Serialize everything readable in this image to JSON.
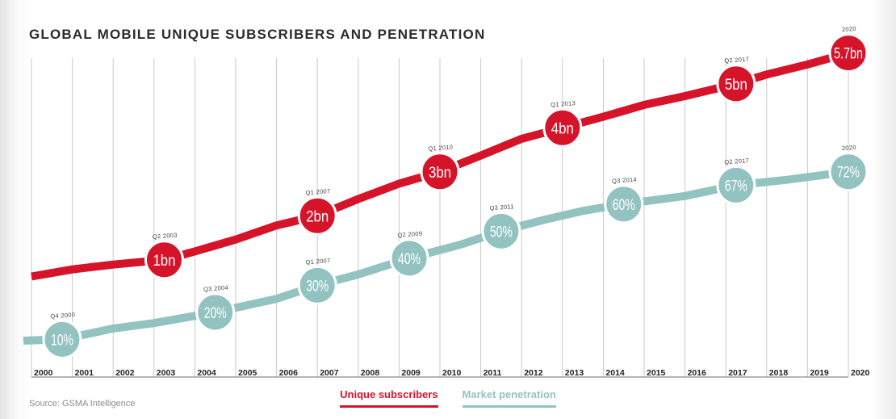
{
  "title": "GLOBAL MOBILE UNIQUE SUBSCRIBERS AND PENETRATION",
  "source": "Source: GSMA Intelligence",
  "legend": {
    "subscribers": "Unique subscribers",
    "penetration": "Market penetration"
  },
  "colors": {
    "subscribers": "#d5142a",
    "penetration": "#93c3c0",
    "grid": "#c9c9c9",
    "axis": "#6a6a6a"
  },
  "chart_data": {
    "type": "line",
    "title": "GLOBAL MOBILE UNIQUE SUBSCRIBERS AND PENETRATION",
    "x_categories": [
      "2000",
      "2001",
      "2002",
      "2003",
      "2004",
      "2005",
      "2006",
      "2007",
      "2008",
      "2009",
      "2010",
      "2011",
      "2012",
      "2013",
      "2014",
      "2015",
      "2016",
      "2017",
      "2018",
      "2019",
      "2020"
    ],
    "grid": true,
    "series": [
      {
        "name": "Unique subscribers",
        "unit": "bn",
        "points": [
          {
            "x": 0.0,
            "y": 0.62
          },
          {
            "x": 1.0,
            "y": 0.78
          },
          {
            "x": 2.0,
            "y": 0.89
          },
          {
            "x": 3.25,
            "y": 1.0
          },
          {
            "x": 4.0,
            "y": 1.19
          },
          {
            "x": 5.0,
            "y": 1.46
          },
          {
            "x": 6.0,
            "y": 1.78
          },
          {
            "x": 7.0,
            "y": 2.0
          },
          {
            "x": 8.0,
            "y": 2.38
          },
          {
            "x": 9.0,
            "y": 2.73
          },
          {
            "x": 10.0,
            "y": 3.0
          },
          {
            "x": 11.0,
            "y": 3.37
          },
          {
            "x": 12.0,
            "y": 3.75
          },
          {
            "x": 13.0,
            "y": 4.0
          },
          {
            "x": 14.0,
            "y": 4.25
          },
          {
            "x": 15.0,
            "y": 4.52
          },
          {
            "x": 16.0,
            "y": 4.72
          },
          {
            "x": 17.25,
            "y": 5.0
          },
          {
            "x": 18.0,
            "y": 5.21
          },
          {
            "x": 19.0,
            "y": 5.44
          },
          {
            "x": 20.0,
            "y": 5.7
          }
        ],
        "markers": [
          {
            "x": 3.25,
            "y": 1.0,
            "label": "1bn",
            "date": "Q2 2003"
          },
          {
            "x": 7.0,
            "y": 2.0,
            "label": "2bn",
            "date": "Q1 2007"
          },
          {
            "x": 10.0,
            "y": 3.0,
            "label": "3bn",
            "date": "Q1 2010"
          },
          {
            "x": 13.0,
            "y": 4.0,
            "label": "4bn",
            "date": "Q1 2013"
          },
          {
            "x": 17.25,
            "y": 5.0,
            "label": "5bn",
            "date": "Q2 2017"
          },
          {
            "x": 20.0,
            "y": 5.7,
            "label": "5.7bn",
            "date": "2020"
          }
        ]
      },
      {
        "name": "Market penetration",
        "unit": "%",
        "points": [
          {
            "x": -0.2,
            "y": 9.5
          },
          {
            "x": 0.75,
            "y": 10
          },
          {
            "x": 2.0,
            "y": 14
          },
          {
            "x": 3.0,
            "y": 16
          },
          {
            "x": 4.5,
            "y": 20
          },
          {
            "x": 6.0,
            "y": 25
          },
          {
            "x": 7.0,
            "y": 30
          },
          {
            "x": 8.0,
            "y": 34
          },
          {
            "x": 9.25,
            "y": 40
          },
          {
            "x": 10.5,
            "y": 45
          },
          {
            "x": 11.5,
            "y": 50
          },
          {
            "x": 12.5,
            "y": 54
          },
          {
            "x": 13.5,
            "y": 57.5
          },
          {
            "x": 14.5,
            "y": 60
          },
          {
            "x": 16.0,
            "y": 63
          },
          {
            "x": 17.25,
            "y": 67
          },
          {
            "x": 18.5,
            "y": 69
          },
          {
            "x": 20.0,
            "y": 72
          }
        ],
        "markers": [
          {
            "x": 0.75,
            "y": 10,
            "label": "10%",
            "date": "Q4 2000"
          },
          {
            "x": 4.5,
            "y": 20,
            "label": "20%",
            "date": "Q3 2004"
          },
          {
            "x": 7.0,
            "y": 30,
            "label": "30%",
            "date": "Q1 2007"
          },
          {
            "x": 9.25,
            "y": 40,
            "label": "40%",
            "date": "Q2 2009"
          },
          {
            "x": 11.5,
            "y": 50,
            "label": "50%",
            "date": "Q3 2011"
          },
          {
            "x": 14.5,
            "y": 60,
            "label": "60%",
            "date": "Q3 2014"
          },
          {
            "x": 17.25,
            "y": 67,
            "label": "67%",
            "date": "Q2 2017"
          },
          {
            "x": 20.0,
            "y": 72,
            "label": "72%",
            "date": "2020"
          }
        ]
      }
    ]
  }
}
